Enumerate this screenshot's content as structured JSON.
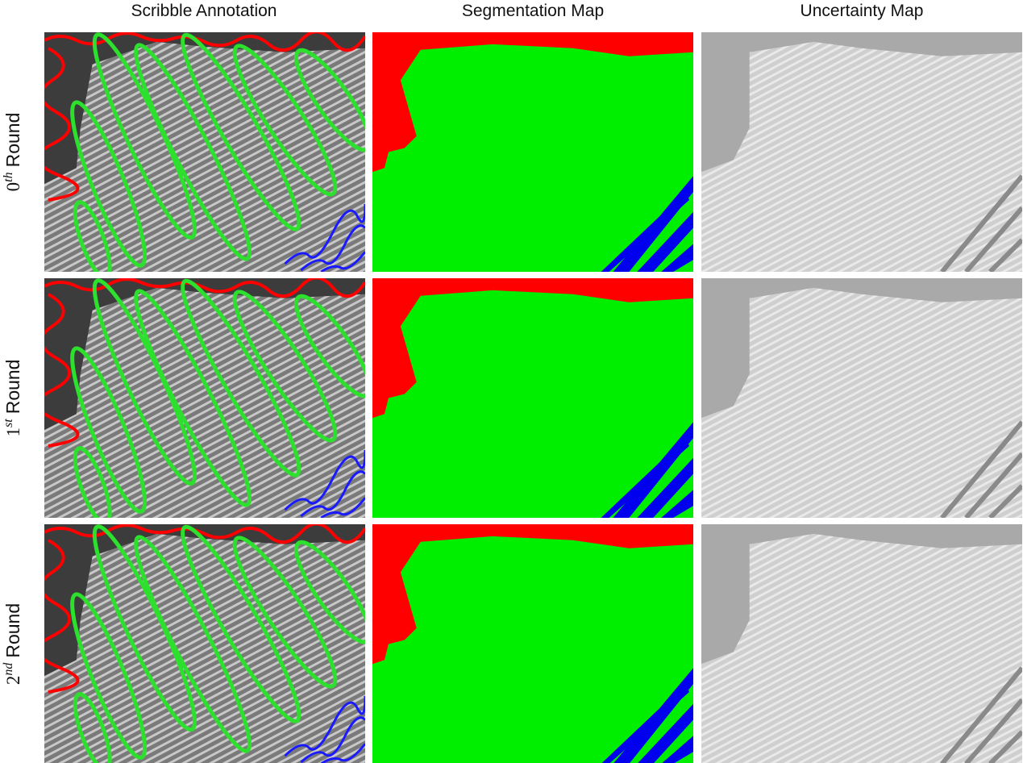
{
  "column_headers": [
    "Scribble Annotation",
    "Segmentation Map",
    "Uncertainty Map"
  ],
  "rows": [
    {
      "number": "0",
      "suffix": "th",
      "word": "Round"
    },
    {
      "number": "1",
      "suffix": "st",
      "word": "Round"
    },
    {
      "number": "2",
      "suffix": "nd",
      "word": "Round"
    }
  ]
}
